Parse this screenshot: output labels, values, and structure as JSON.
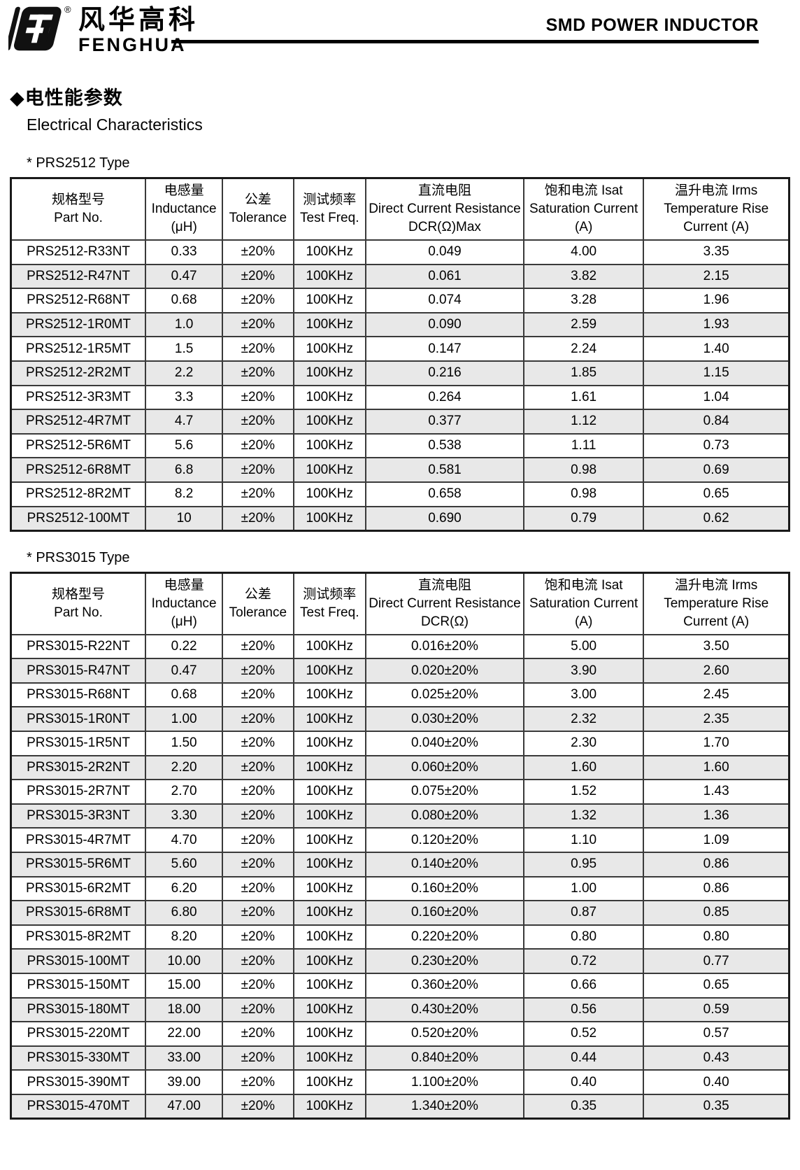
{
  "header": {
    "brand_cn": "风华高科",
    "brand_en": "FENGHUA",
    "registered_mark": "®",
    "doc_title": "SMD POWER INDUCTOR"
  },
  "section": {
    "heading_cn": "◆电性能参数",
    "heading_en": "Electrical Characteristics"
  },
  "colors": {
    "row_stripe": "#e8e8e8",
    "table_border": "#333333",
    "text": "#000000",
    "header_rule": "#000000"
  },
  "tables": [
    {
      "type_label": "*  PRS2512 Type",
      "columns": [
        {
          "lines": [
            "规格型号",
            "Part No."
          ]
        },
        {
          "lines": [
            "电感量",
            "Inductance",
            "(μH)"
          ]
        },
        {
          "lines": [
            "公差",
            "Tolerance"
          ]
        },
        {
          "lines": [
            "测试频率",
            "Test Freq."
          ]
        },
        {
          "lines": [
            "直流电阻",
            "Direct Current Resistance",
            "DCR(Ω)Max"
          ]
        },
        {
          "lines": [
            "饱和电流  Isat",
            "Saturation Current",
            "(A)"
          ]
        },
        {
          "lines": [
            "温升电流  Irms",
            "Temperature Rise",
            "Current (A)"
          ]
        }
      ],
      "rows": [
        [
          "PRS2512-R33NT",
          "0.33",
          "±20%",
          "100KHz",
          "0.049",
          "4.00",
          "3.35"
        ],
        [
          "PRS2512-R47NT",
          "0.47",
          "±20%",
          "100KHz",
          "0.061",
          "3.82",
          "2.15"
        ],
        [
          "PRS2512-R68NT",
          "0.68",
          "±20%",
          "100KHz",
          "0.074",
          "3.28",
          "1.96"
        ],
        [
          "PRS2512-1R0MT",
          "1.0",
          "±20%",
          "100KHz",
          "0.090",
          "2.59",
          "1.93"
        ],
        [
          "PRS2512-1R5MT",
          "1.5",
          "±20%",
          "100KHz",
          "0.147",
          "2.24",
          "1.40"
        ],
        [
          "PRS2512-2R2MT",
          "2.2",
          "±20%",
          "100KHz",
          "0.216",
          "1.85",
          "1.15"
        ],
        [
          "PRS2512-3R3MT",
          "3.3",
          "±20%",
          "100KHz",
          "0.264",
          "1.61",
          "1.04"
        ],
        [
          "PRS2512-4R7MT",
          "4.7",
          "±20%",
          "100KHz",
          "0.377",
          "1.12",
          "0.84"
        ],
        [
          "PRS2512-5R6MT",
          "5.6",
          "±20%",
          "100KHz",
          "0.538",
          "1.11",
          "0.73"
        ],
        [
          "PRS2512-6R8MT",
          "6.8",
          "±20%",
          "100KHz",
          "0.581",
          "0.98",
          "0.69"
        ],
        [
          "PRS2512-8R2MT",
          "8.2",
          "±20%",
          "100KHz",
          "0.658",
          "0.98",
          "0.65"
        ],
        [
          "PRS2512-100MT",
          "10",
          "±20%",
          "100KHz",
          "0.690",
          "0.79",
          "0.62"
        ]
      ]
    },
    {
      "type_label": "*  PRS3015 Type",
      "columns": [
        {
          "lines": [
            "规格型号",
            "Part No."
          ]
        },
        {
          "lines": [
            "电感量",
            "Inductance",
            "(μH)"
          ]
        },
        {
          "lines": [
            "公差",
            "Tolerance"
          ]
        },
        {
          "lines": [
            "测试频率",
            "Test Freq."
          ]
        },
        {
          "lines": [
            "直流电阻",
            "Direct Current Resistance",
            "DCR(Ω)"
          ]
        },
        {
          "lines": [
            "饱和电流  Isat",
            "Saturation Current",
            "(A)"
          ]
        },
        {
          "lines": [
            "温升电流  Irms",
            "Temperature Rise",
            "Current (A)"
          ]
        }
      ],
      "rows": [
        [
          "PRS3015-R22NT",
          "0.22",
          "±20%",
          "100KHz",
          "0.016±20%",
          "5.00",
          "3.50"
        ],
        [
          "PRS3015-R47NT",
          "0.47",
          "±20%",
          "100KHz",
          "0.020±20%",
          "3.90",
          "2.60"
        ],
        [
          "PRS3015-R68NT",
          "0.68",
          "±20%",
          "100KHz",
          "0.025±20%",
          "3.00",
          "2.45"
        ],
        [
          "PRS3015-1R0NT",
          "1.00",
          "±20%",
          "100KHz",
          "0.030±20%",
          "2.32",
          "2.35"
        ],
        [
          "PRS3015-1R5NT",
          "1.50",
          "±20%",
          "100KHz",
          "0.040±20%",
          "2.30",
          "1.70"
        ],
        [
          "PRS3015-2R2NT",
          "2.20",
          "±20%",
          "100KHz",
          "0.060±20%",
          "1.60",
          "1.60"
        ],
        [
          "PRS3015-2R7NT",
          "2.70",
          "±20%",
          "100KHz",
          "0.075±20%",
          "1.52",
          "1.43"
        ],
        [
          "PRS3015-3R3NT",
          "3.30",
          "±20%",
          "100KHz",
          "0.080±20%",
          "1.32",
          "1.36"
        ],
        [
          "PRS3015-4R7MT",
          "4.70",
          "±20%",
          "100KHz",
          "0.120±20%",
          "1.10",
          "1.09"
        ],
        [
          "PRS3015-5R6MT",
          "5.60",
          "±20%",
          "100KHz",
          "0.140±20%",
          "0.95",
          "0.86"
        ],
        [
          "PRS3015-6R2MT",
          "6.20",
          "±20%",
          "100KHz",
          "0.160±20%",
          "1.00",
          "0.86"
        ],
        [
          "PRS3015-6R8MT",
          "6.80",
          "±20%",
          "100KHz",
          "0.160±20%",
          "0.87",
          "0.85"
        ],
        [
          "PRS3015-8R2MT",
          "8.20",
          "±20%",
          "100KHz",
          "0.220±20%",
          "0.80",
          "0.80"
        ],
        [
          "PRS3015-100MT",
          "10.00",
          "±20%",
          "100KHz",
          "0.230±20%",
          "0.72",
          "0.77"
        ],
        [
          "PRS3015-150MT",
          "15.00",
          "±20%",
          "100KHz",
          "0.360±20%",
          "0.66",
          "0.65"
        ],
        [
          "PRS3015-180MT",
          "18.00",
          "±20%",
          "100KHz",
          "0.430±20%",
          "0.56",
          "0.59"
        ],
        [
          "PRS3015-220MT",
          "22.00",
          "±20%",
          "100KHz",
          "0.520±20%",
          "0.52",
          "0.57"
        ],
        [
          "PRS3015-330MT",
          "33.00",
          "±20%",
          "100KHz",
          "0.840±20%",
          "0.44",
          "0.43"
        ],
        [
          "PRS3015-390MT",
          "39.00",
          "±20%",
          "100KHz",
          "1.100±20%",
          "0.40",
          "0.40"
        ],
        [
          "PRS3015-470MT",
          "47.00",
          "±20%",
          "100KHz",
          "1.340±20%",
          "0.35",
          "0.35"
        ]
      ]
    }
  ]
}
